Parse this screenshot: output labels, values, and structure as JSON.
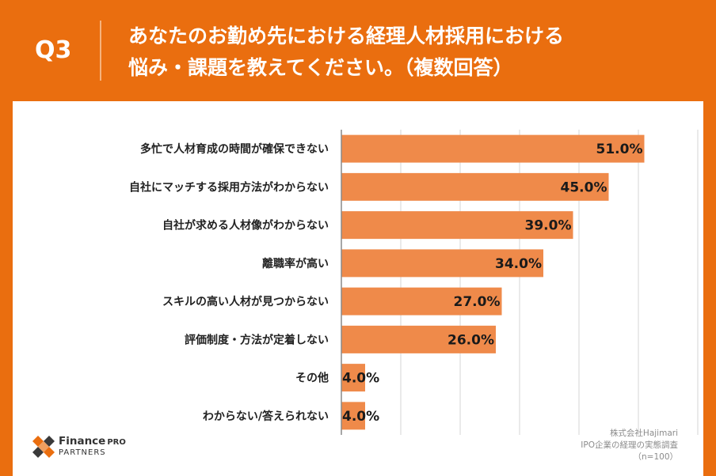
{
  "header": {
    "q_label": "Q3",
    "title_line1": "あなたのお勤め先における経理人材採用における",
    "title_line2": "悩み・課題を教えてください。（複数回答）"
  },
  "chart_data": {
    "type": "bar",
    "orientation": "horizontal",
    "title": "あなたのお勤め先における経理人材採用における悩み・課題を教えてください。（複数回答）",
    "categories": [
      "多忙で人材育成の時間が確保できない",
      "自社にマッチする採用方法がわからない",
      "自社が求める人材像がわからない",
      "離職率が高い",
      "スキルの高い人材が見つからない",
      "評価制度・方法が定着しない",
      "その他",
      "わからない/答えられない"
    ],
    "values": [
      51.0,
      45.0,
      39.0,
      34.0,
      27.0,
      26.0,
      4.0,
      4.0
    ],
    "value_labels": [
      "51.0%",
      "45.0%",
      "39.0%",
      "34.0%",
      "27.0%",
      "26.0%",
      "4.0%",
      "4.0%"
    ],
    "xlim": [
      0,
      60
    ],
    "grid": true,
    "bar_color": "#ef8a4a"
  },
  "credit": {
    "line1": "株式会社Hajimari",
    "line2": "IPO企業の経理の実態調査",
    "line3": "（n=100）"
  },
  "logo": {
    "name": "Finance",
    "suffix": "PRO",
    "sub": "PARTNERS"
  },
  "colors": {
    "background": "#ea6e0f",
    "bar": "#ef8a4a",
    "logo_orange": "#ea6e0f",
    "logo_dark": "#3a3a3a"
  }
}
